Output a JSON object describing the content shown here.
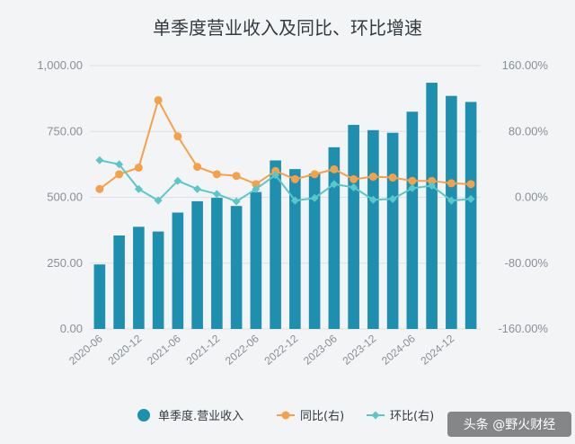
{
  "chart_data": {
    "type": "bar",
    "title": "单季度营业收入及同比、环比增速",
    "categories": [
      "2020-06",
      "2020-09",
      "2020-12",
      "2021-03",
      "2021-06",
      "2021-09",
      "2021-12",
      "2022-03",
      "2022-06",
      "2022-09",
      "2022-12",
      "2023-03",
      "2023-06",
      "2023-09",
      "2023-12",
      "2024-03",
      "2024-06",
      "2024-09",
      "2024-12",
      "2025-03"
    ],
    "x_tick_labels": [
      "2020-06",
      "2020-12",
      "2021-06",
      "2021-12",
      "2022-06",
      "2022-12",
      "2023-06",
      "2023-12",
      "2024-06",
      "2024-12"
    ],
    "left_axis": {
      "ylim": [
        0,
        1000
      ],
      "ticks": [
        "0.00",
        "250.00",
        "500.00",
        "750.00",
        "1,000.00"
      ]
    },
    "right_axis": {
      "ylim": [
        -160,
        160
      ],
      "ticks": [
        "-160.00%",
        "-80.00%",
        "0.00%",
        "80.00%",
        "160.00%"
      ]
    },
    "grid": true,
    "legend_position": "bottom",
    "series": [
      {
        "name": "单季度.营业收入",
        "type": "bar",
        "axis": "left",
        "color": "#1f8fb0",
        "values": [
          245,
          355,
          388,
          370,
          442,
          485,
          498,
          467,
          520,
          640,
          607,
          590,
          690,
          775,
          755,
          745,
          825,
          935,
          885,
          862
        ]
      },
      {
        "name": "同比(右)",
        "type": "line",
        "axis": "right",
        "color": "#f5a04a",
        "values": [
          10,
          28,
          36,
          118,
          74,
          37,
          28,
          26,
          16,
          32,
          22,
          28,
          34,
          22,
          25,
          24,
          20,
          20,
          17,
          16
        ]
      },
      {
        "name": "环比(右)",
        "type": "line",
        "axis": "right",
        "color": "#5bc7c9",
        "values": [
          45,
          40,
          10,
          -4,
          20,
          10,
          4,
          -5,
          10,
          27,
          -4,
          -1,
          16,
          12,
          -3,
          -2,
          11,
          14,
          -4,
          -2
        ]
      }
    ],
    "watermark": "头条 @野火财经"
  }
}
